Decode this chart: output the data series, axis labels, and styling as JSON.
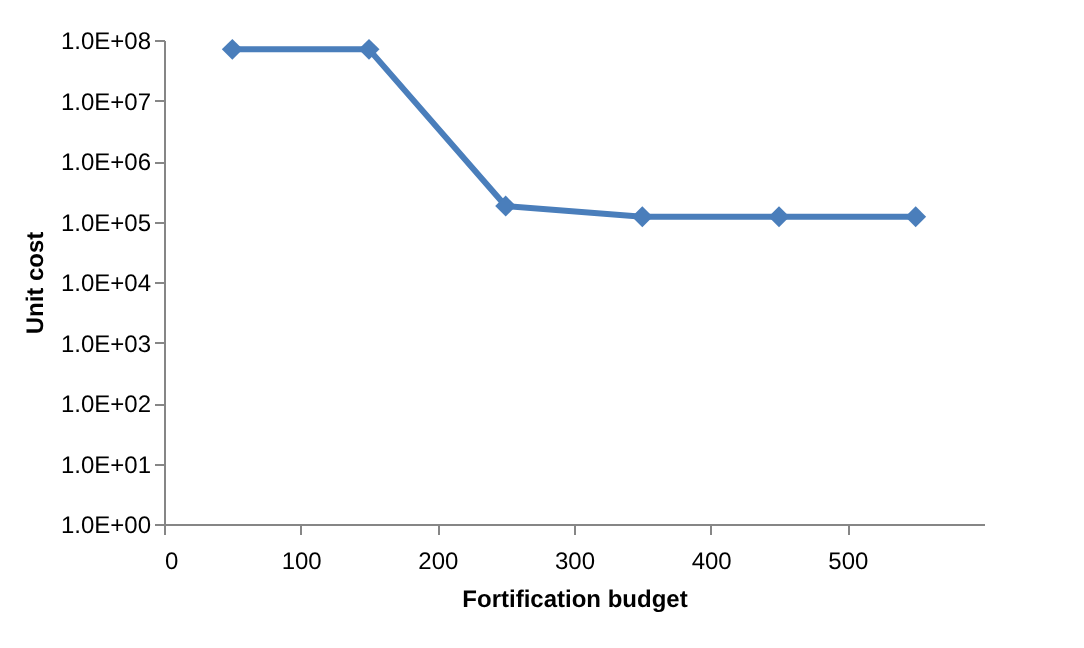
{
  "chart_data": {
    "type": "line",
    "xlabel": "Fortification budget",
    "ylabel": "Unit cost",
    "x": [
      50,
      150,
      250,
      350,
      450,
      550
    ],
    "series": [
      {
        "color": "#4a7ebb",
        "values": [
          70000000,
          70000000,
          180000,
          120000,
          120000,
          120000
        ]
      }
    ],
    "xlim": [
      0,
      600
    ],
    "xticks": [
      0,
      100,
      200,
      300,
      400,
      500
    ],
    "ylim": [
      1,
      100000000
    ],
    "yticks": [
      {
        "value": 1,
        "label": "1.0E+00"
      },
      {
        "value": 10,
        "label": "1.0E+01"
      },
      {
        "value": 100,
        "label": "1.0E+02"
      },
      {
        "value": 1000,
        "label": "1.0E+03"
      },
      {
        "value": 10000,
        "label": "1.0E+04"
      },
      {
        "value": 100000,
        "label": "1.0E+05"
      },
      {
        "value": 1000000,
        "label": "1.0E+06"
      },
      {
        "value": 10000000,
        "label": "1.0E+07"
      },
      {
        "value": 100000000,
        "label": "1.0E+08"
      }
    ],
    "log": "y",
    "grid": false,
    "legend": false,
    "marker": "diamond",
    "line_style": "solid"
  }
}
